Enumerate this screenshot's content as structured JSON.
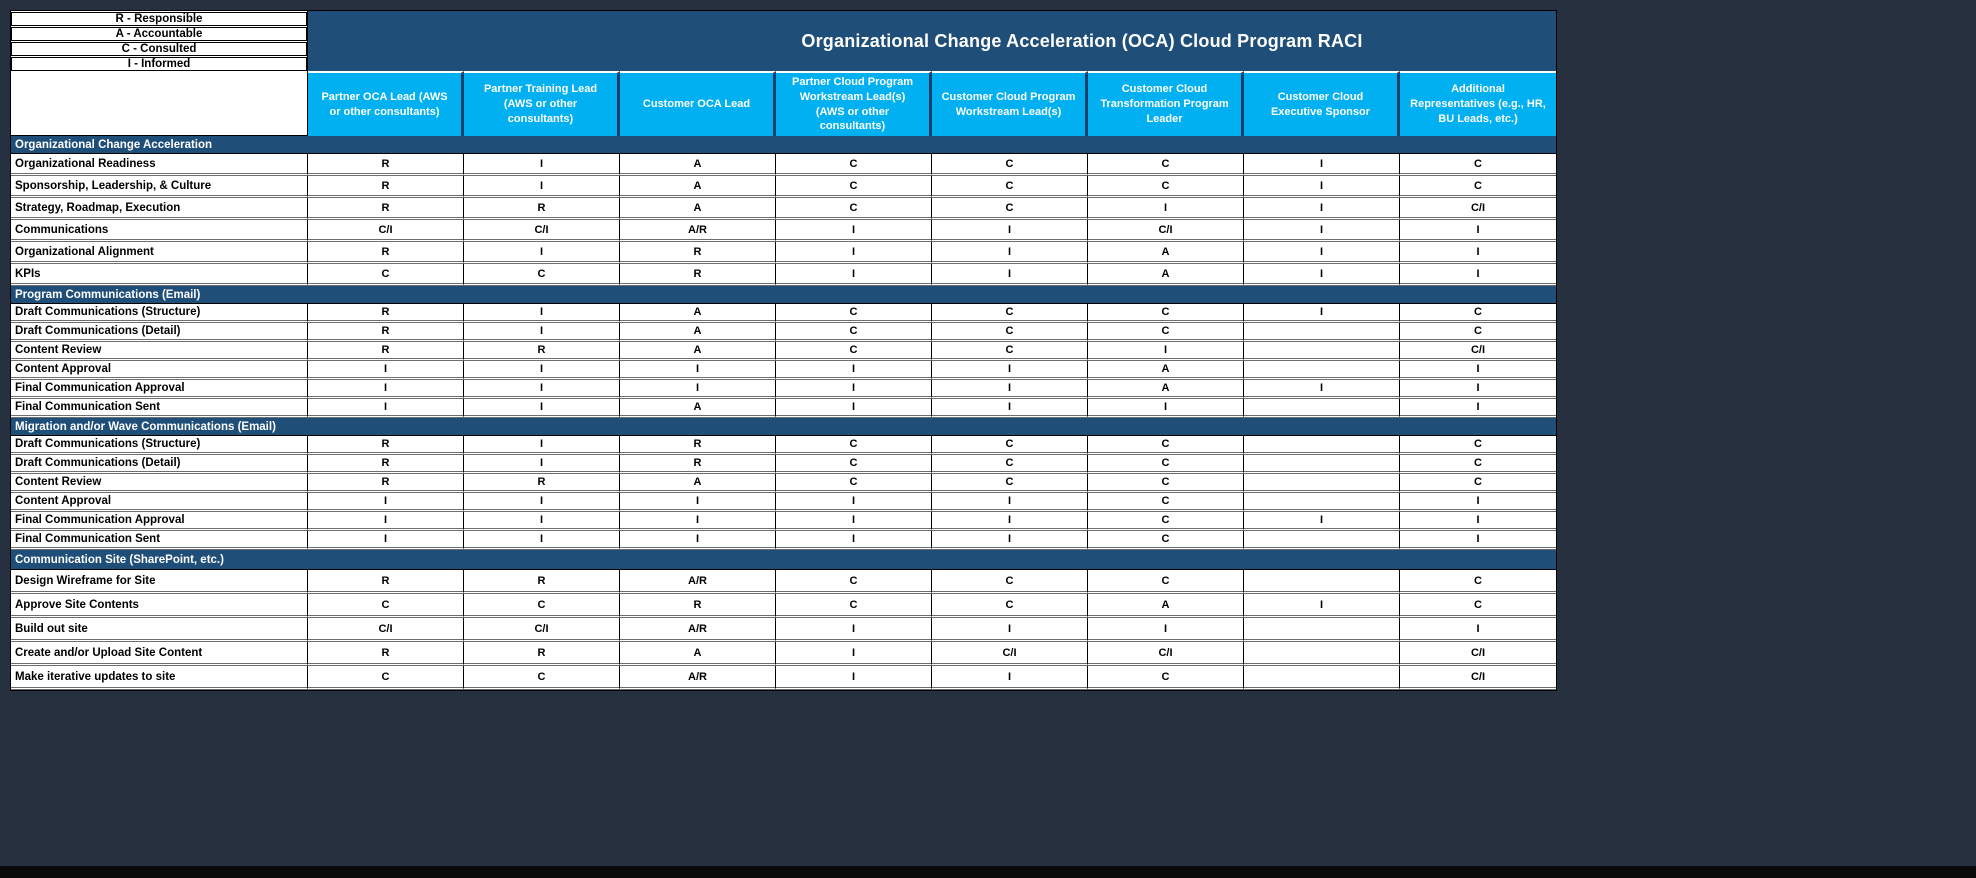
{
  "title": "Organizational Change Acceleration (OCA) Cloud Program RACI",
  "legend": {
    "items": [
      "R - Responsible",
      "A - Accountable",
      "C - Consulted",
      "I - Informed"
    ]
  },
  "columns": [
    "Partner OCA Lead (AWS or other consultants)",
    "Partner Training Lead (AWS or other consultants)",
    "Customer OCA  Lead",
    "Partner Cloud Program Workstream Lead(s) (AWS or other consultants)",
    "Customer Cloud Program Workstream Lead(s)",
    "Customer Cloud Transformation Program Leader",
    "Customer Cloud Executive Sponsor",
    "Additional Representatives (e.g., HR, BU Leads, etc.)"
  ],
  "sections": [
    {
      "label": "Organizational Change Acceleration",
      "rows": [
        {
          "label": "Organizational Readiness",
          "values": [
            "R",
            "I",
            "A",
            "C",
            "C",
            "C",
            "I",
            "C"
          ]
        },
        {
          "label": "Sponsorship, Leadership, & Culture",
          "values": [
            "R",
            "I",
            "A",
            "C",
            "C",
            "C",
            "I",
            "C"
          ]
        },
        {
          "label": "Strategy, Roadmap, Execution",
          "values": [
            "R",
            "R",
            "A",
            "C",
            "C",
            "I",
            "I",
            "C/I"
          ]
        },
        {
          "label": "Communications",
          "values": [
            "C/I",
            "C/I",
            "A/R",
            "I",
            "I",
            "C/I",
            "I",
            "I"
          ]
        },
        {
          "label": "Organizational Alignment",
          "values": [
            "R",
            "I",
            "R",
            "I",
            "I",
            "A",
            "I",
            "I"
          ]
        },
        {
          "label": "KPIs",
          "values": [
            "C",
            "C",
            "R",
            "I",
            "I",
            "A",
            "I",
            "I"
          ]
        }
      ]
    },
    {
      "label": "Program Communications (Email)",
      "rows": [
        {
          "label": "Draft Communications (Structure)",
          "values": [
            "R",
            "I",
            "A",
            "C",
            "C",
            "C",
            "I",
            "C"
          ]
        },
        {
          "label": "Draft Communications (Detail)",
          "values": [
            "R",
            "I",
            "A",
            "C",
            "C",
            "C",
            "",
            "C"
          ]
        },
        {
          "label": "Content Review",
          "values": [
            "R",
            "R",
            "A",
            "C",
            "C",
            "I",
            "",
            "C/I"
          ]
        },
        {
          "label": "Content Approval",
          "values": [
            "I",
            "I",
            "I",
            "I",
            "I",
            "A",
            "",
            "I"
          ]
        },
        {
          "label": "Final Communication Approval",
          "values": [
            "I",
            "I",
            "I",
            "I",
            "I",
            "A",
            "I",
            "I"
          ]
        },
        {
          "label": "Final Communication Sent",
          "values": [
            "I",
            "I",
            "A",
            "I",
            "I",
            "I",
            "",
            "I"
          ]
        }
      ]
    },
    {
      "label": "Migration and/or Wave Communications (Email)",
      "rows": [
        {
          "label": "Draft Communications (Structure)",
          "values": [
            "R",
            "I",
            "R",
            "C",
            "C",
            "C",
            "",
            "C"
          ]
        },
        {
          "label": "Draft Communications (Detail)",
          "values": [
            "R",
            "I",
            "R",
            "C",
            "C",
            "C",
            "",
            "C"
          ]
        },
        {
          "label": "Content Review",
          "values": [
            "R",
            "R",
            "A",
            "C",
            "C",
            "C",
            "",
            "C"
          ]
        },
        {
          "label": "Content Approval",
          "values": [
            "I",
            "I",
            "I",
            "I",
            "I",
            "C",
            "",
            "I"
          ]
        },
        {
          "label": "Final Communication Approval",
          "values": [
            "I",
            "I",
            "I",
            "I",
            "I",
            "C",
            "I",
            "I"
          ]
        },
        {
          "label": "Final Communication Sent",
          "values": [
            "I",
            "I",
            "I",
            "I",
            "I",
            "C",
            "",
            "I"
          ]
        }
      ]
    },
    {
      "label": "Communication Site (SharePoint, etc.)",
      "rows": [
        {
          "label": "Design Wireframe for Site",
          "values": [
            "R",
            "R",
            "A/R",
            "C",
            "C",
            "C",
            "",
            "C"
          ]
        },
        {
          "label": "Approve Site Contents",
          "values": [
            "C",
            "C",
            "R",
            "C",
            "C",
            "A",
            "I",
            "C"
          ]
        },
        {
          "label": "Build out site",
          "values": [
            "C/I",
            "C/I",
            "A/R",
            "I",
            "I",
            "I",
            "",
            "I"
          ]
        },
        {
          "label": "Create and/or Upload Site Content",
          "values": [
            "R",
            "R",
            "A",
            "I",
            "C/I",
            "C/I",
            "",
            "C/I"
          ]
        },
        {
          "label": "Make iterative updates to site",
          "values": [
            "C",
            "C",
            "A/R",
            "I",
            "I",
            "C",
            "",
            "C/I"
          ]
        }
      ]
    }
  ],
  "colors": {
    "canvas_bg": "#27303F",
    "title_bar": "#1F4E79",
    "section_bar": "#1F4E79",
    "header_bg": "#00B0F0",
    "header_text": "#FFFFFF",
    "cell_text": "#000000"
  }
}
